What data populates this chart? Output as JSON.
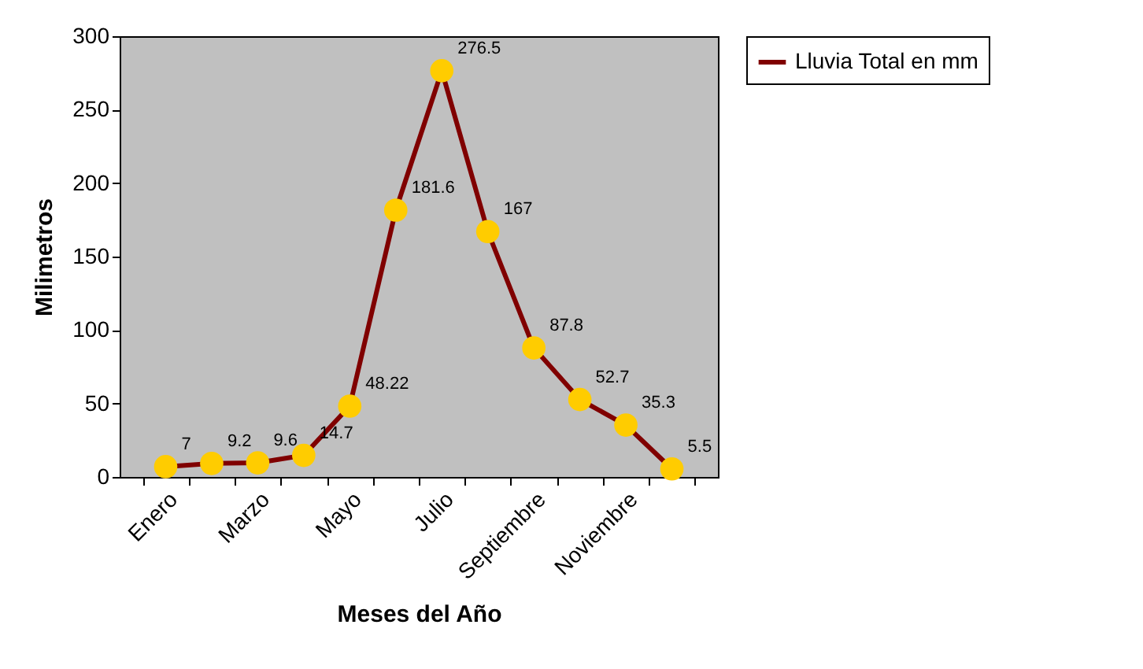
{
  "chart_data": {
    "type": "line",
    "xlabel": "Meses del Año",
    "ylabel": "Milimetros",
    "categories": [
      "Enero",
      null,
      "Marzo",
      null,
      "Mayo",
      null,
      "Julio",
      null,
      "Septiembre",
      null,
      "Noviembre",
      null
    ],
    "series": [
      {
        "name": "Lluvia Total en mm",
        "color": "#800000",
        "values": [
          7,
          9.2,
          9.6,
          14.7,
          48.22,
          181.6,
          276.5,
          167,
          87.8,
          52.7,
          35.3,
          5.5
        ]
      }
    ],
    "ylim": [
      0,
      300
    ],
    "yticks": [
      0,
      50,
      100,
      150,
      200,
      250,
      300
    ],
    "grid": false,
    "legend": "right",
    "marker": "circle",
    "line_style": "solid",
    "data_labels": true
  }
}
